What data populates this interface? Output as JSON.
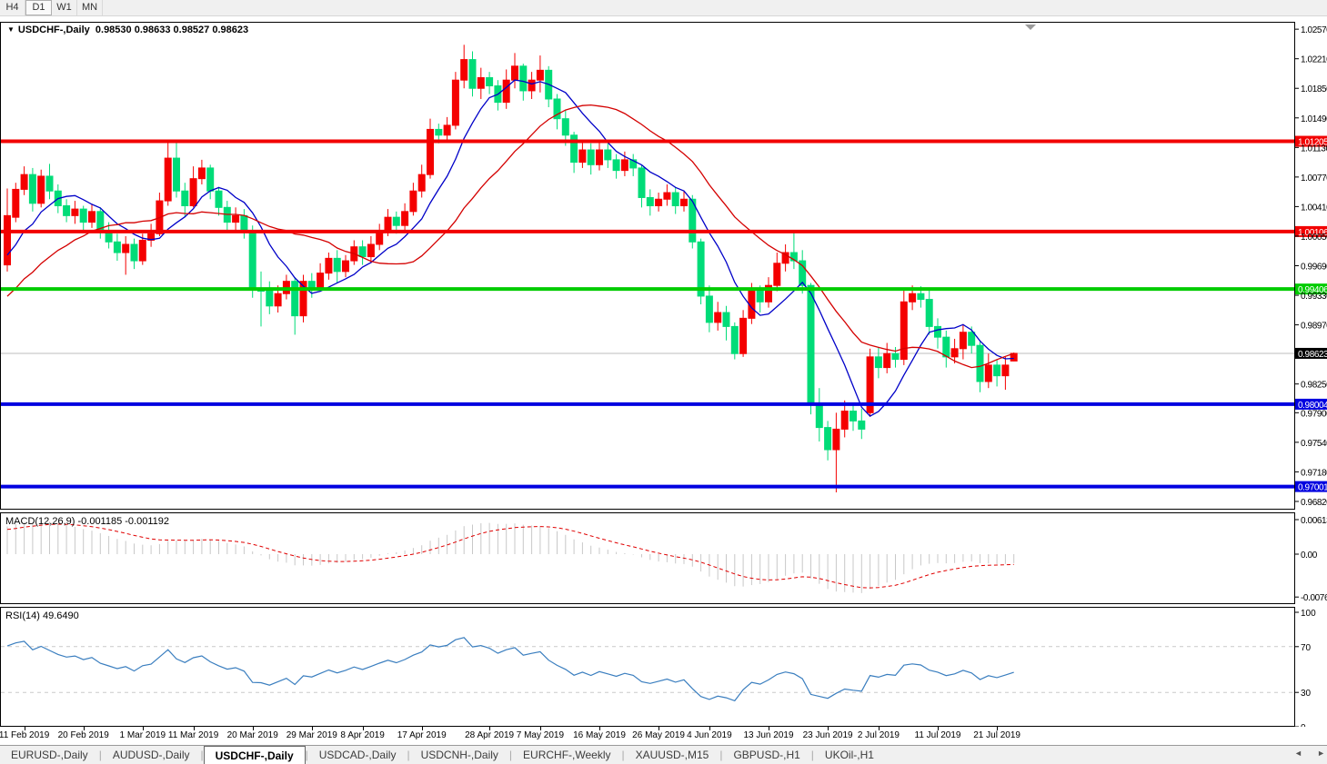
{
  "toolbar": {
    "timeframes": [
      {
        "label": "H4",
        "active": false
      },
      {
        "label": "D1",
        "active": true
      },
      {
        "label": "W1",
        "active": false
      },
      {
        "label": "MN",
        "active": false
      }
    ]
  },
  "chart": {
    "title": "USDCHF-,Daily",
    "ohlc_label": "0.98530 0.98633 0.98527 0.98623",
    "dropdown_icon": "▼"
  },
  "chart_data": {
    "type": "candlestick",
    "symbol": "USDCHF-",
    "timeframe": "Daily",
    "last_bar": {
      "open": 0.9853,
      "high": 0.98633,
      "low": 0.98527,
      "close": 0.98623
    },
    "price_axis": {
      "ticks": [
        "1.02570",
        "1.02210",
        "1.01850",
        "1.01490",
        "1.01130",
        "1.00770",
        "1.00410",
        "1.00050",
        "0.99690",
        "0.99330",
        "0.98970",
        "0.98250",
        "0.97900",
        "0.97540",
        "0.97180",
        "0.96820"
      ],
      "pmax": 1.0266,
      "pmin": 0.9672
    },
    "current_price": {
      "value": 0.98623,
      "label": "0.98623"
    },
    "hlines": [
      {
        "price": 1.01205,
        "label": "1.01205",
        "color": "#f20000"
      },
      {
        "price": 1.00106,
        "label": "1.00106",
        "color": "#f20000"
      },
      {
        "price": 0.99406,
        "label": "0.99406",
        "color": "#00cc00"
      },
      {
        "price": 0.98004,
        "label": "0.98004",
        "color": "#0000e0"
      },
      {
        "price": 0.97001,
        "label": "0.97001",
        "color": "#0000e0"
      }
    ],
    "moving_averages": [
      {
        "name": "fast",
        "period": 8,
        "color": "#0000c8"
      },
      {
        "name": "slow",
        "period": 20,
        "color": "#d40000"
      }
    ],
    "date_axis": [
      {
        "label": "11 Feb 2019",
        "i": 2
      },
      {
        "label": "20 Feb 2019",
        "i": 9
      },
      {
        "label": "1 Mar 2019",
        "i": 16
      },
      {
        "label": "11 Mar 2019",
        "i": 22
      },
      {
        "label": "20 Mar 2019",
        "i": 29
      },
      {
        "label": "29 Mar 2019",
        "i": 36
      },
      {
        "label": "8 Apr 2019",
        "i": 42
      },
      {
        "label": "17 Apr 2019",
        "i": 49
      },
      {
        "label": "28 Apr 2019",
        "i": 57
      },
      {
        "label": "7 May 2019",
        "i": 63
      },
      {
        "label": "16 May 2019",
        "i": 70
      },
      {
        "label": "26 May 2019",
        "i": 77
      },
      {
        "label": "4 Jun 2019",
        "i": 83
      },
      {
        "label": "13 Jun 2019",
        "i": 90
      },
      {
        "label": "23 Jun 2019",
        "i": 97
      },
      {
        "label": "2 Jul 2019",
        "i": 103
      },
      {
        "label": "11 Jul 2019",
        "i": 110
      },
      {
        "label": "21 Jul 2019",
        "i": 117
      }
    ],
    "candles": [
      [
        0.997,
        1.0063,
        0.9962,
        1.003
      ],
      [
        1.0028,
        1.007,
        1.0022,
        1.0062
      ],
      [
        1.0062,
        1.009,
        1.0055,
        1.008
      ],
      [
        1.008,
        1.0088,
        1.0035,
        1.0045
      ],
      [
        1.0045,
        1.0086,
        1.004,
        1.0078
      ],
      [
        1.0078,
        1.0093,
        1.005,
        1.006
      ],
      [
        1.006,
        1.0068,
        1.0033,
        1.0042
      ],
      [
        1.0042,
        1.005,
        1.0022,
        1.003
      ],
      [
        1.003,
        1.0048,
        1.002,
        1.0038
      ],
      [
        1.0038,
        1.0042,
        1.0012,
        1.0022
      ],
      [
        1.0022,
        1.0044,
        1.0015,
        1.0035
      ],
      [
        1.0035,
        1.004,
        1.0002,
        1.001
      ],
      [
        1.001,
        1.0022,
        0.999,
        0.9998
      ],
      [
        0.9998,
        1.0008,
        0.9975,
        0.9985
      ],
      [
        0.9985,
        1.0005,
        0.9958,
        0.9995
      ],
      [
        0.9995,
        1.0002,
        0.9965,
        0.9975
      ],
      [
        0.9975,
        1.0008,
        0.997,
        1.0
      ],
      [
        1.0,
        1.002,
        0.9992,
        1.0008
      ],
      [
        1.0008,
        1.0058,
        1.0005,
        1.0048
      ],
      [
        1.0048,
        1.0122,
        1.0042,
        1.01
      ],
      [
        1.01,
        1.0121,
        1.0052,
        1.006
      ],
      [
        1.006,
        1.007,
        1.0028,
        1.0042
      ],
      [
        1.0042,
        1.009,
        1.004,
        1.0075
      ],
      [
        1.0075,
        1.0098,
        1.0068,
        1.0088
      ],
      [
        1.0088,
        1.0092,
        1.005,
        1.006
      ],
      [
        1.006,
        1.0065,
        1.003,
        1.004
      ],
      [
        1.004,
        1.0048,
        1.001,
        1.0022
      ],
      [
        1.0022,
        1.004,
        1.0012,
        1.003
      ],
      [
        1.003,
        1.0038,
        1.0002,
        1.0012
      ],
      [
        1.0012,
        1.0018,
        0.993,
        0.994
      ],
      [
        0.994,
        0.9962,
        0.9895,
        0.9938
      ],
      [
        0.9938,
        0.995,
        0.991,
        0.992
      ],
      [
        0.992,
        0.9945,
        0.9912,
        0.9935
      ],
      [
        0.9935,
        0.9958,
        0.9928,
        0.995
      ],
      [
        0.995,
        0.9955,
        0.9885,
        0.9908
      ],
      [
        0.9908,
        0.9958,
        0.99,
        0.995
      ],
      [
        0.995,
        0.996,
        0.993,
        0.9942
      ],
      [
        0.9942,
        0.9972,
        0.9938,
        0.996
      ],
      [
        0.996,
        0.9985,
        0.9952,
        0.9978
      ],
      [
        0.9978,
        0.9988,
        0.9948,
        0.9962
      ],
      [
        0.9962,
        0.9982,
        0.9955,
        0.9975
      ],
      [
        0.9975,
        1.0,
        0.997,
        0.9992
      ],
      [
        0.9992,
        1.0,
        0.997,
        0.998
      ],
      [
        0.998,
        1.0005,
        0.9972,
        0.9995
      ],
      [
        0.9995,
        1.002,
        0.9988,
        1.0012
      ],
      [
        1.0012,
        1.0038,
        1.0005,
        1.0028
      ],
      [
        1.0028,
        1.0035,
        1.0008,
        1.0018
      ],
      [
        1.0018,
        1.0045,
        1.0012,
        1.0035
      ],
      [
        1.0035,
        1.007,
        1.003,
        1.006
      ],
      [
        1.006,
        1.0092,
        1.0052,
        1.008
      ],
      [
        1.008,
        1.0148,
        1.0075,
        1.0135
      ],
      [
        1.0135,
        1.0142,
        1.0118,
        1.0128
      ],
      [
        1.0128,
        1.015,
        1.012,
        1.014
      ],
      [
        1.014,
        1.0205,
        1.0135,
        1.0195
      ],
      [
        1.0195,
        1.0238,
        1.0185,
        1.022
      ],
      [
        1.022,
        1.023,
        1.0175,
        1.0185
      ],
      [
        1.0185,
        1.021,
        1.0172,
        1.0198
      ],
      [
        1.0198,
        1.0205,
        1.0178,
        1.0188
      ],
      [
        1.0188,
        1.0195,
        1.0158,
        1.0168
      ],
      [
        1.0168,
        1.0208,
        1.016,
        1.0195
      ],
      [
        1.0195,
        1.0228,
        1.0185,
        1.0212
      ],
      [
        1.0212,
        1.0215,
        1.017,
        1.0182
      ],
      [
        1.0182,
        1.0205,
        1.0172,
        1.0195
      ],
      [
        1.0195,
        1.0225,
        1.018,
        1.0207
      ],
      [
        1.0207,
        1.0212,
        1.0162,
        1.0172
      ],
      [
        1.0172,
        1.0178,
        1.0135,
        1.0148
      ],
      [
        1.0148,
        1.0158,
        1.0115,
        1.0128
      ],
      [
        1.0128,
        1.0132,
        1.0082,
        1.0095
      ],
      [
        1.0095,
        1.0122,
        1.0088,
        1.011
      ],
      [
        1.011,
        1.0118,
        1.008,
        1.0092
      ],
      [
        1.0092,
        1.012,
        1.0085,
        1.011
      ],
      [
        1.011,
        1.0118,
        1.0088,
        1.0098
      ],
      [
        1.0098,
        1.0105,
        1.0075,
        1.0085
      ],
      [
        1.0085,
        1.0108,
        1.0078,
        1.0098
      ],
      [
        1.0098,
        1.0105,
        1.0078,
        1.0088
      ],
      [
        1.0088,
        1.0092,
        1.004,
        1.0052
      ],
      [
        1.0052,
        1.0062,
        1.003,
        1.0042
      ],
      [
        1.0042,
        1.0058,
        1.0035,
        1.005
      ],
      [
        1.005,
        1.0068,
        1.0042,
        1.0058
      ],
      [
        1.0058,
        1.0065,
        1.0032,
        1.0042
      ],
      [
        1.0042,
        1.006,
        1.0035,
        1.005
      ],
      [
        1.005,
        1.0055,
        0.999,
        0.9998
      ],
      [
        0.9998,
        1.0002,
        0.9922,
        0.9932
      ],
      [
        0.9932,
        0.9945,
        0.9888,
        0.99
      ],
      [
        0.99,
        0.9925,
        0.989,
        0.9912
      ],
      [
        0.9912,
        0.992,
        0.9878,
        0.9895
      ],
      [
        0.9895,
        0.99,
        0.9855,
        0.9862
      ],
      [
        0.9862,
        0.9915,
        0.9858,
        0.9905
      ],
      [
        0.9905,
        0.9948,
        0.9898,
        0.9938
      ],
      [
        0.9938,
        0.9945,
        0.9912,
        0.9925
      ],
      [
        0.9925,
        0.9955,
        0.9918,
        0.9945
      ],
      [
        0.9945,
        0.9985,
        0.9938,
        0.9972
      ],
      [
        0.9972,
        0.9995,
        0.9962,
        0.9985
      ],
      [
        0.9985,
        1.0012,
        0.9965,
        0.9975
      ],
      [
        0.9975,
        0.9988,
        0.9935,
        0.9945
      ],
      [
        0.9945,
        0.9948,
        0.9788,
        0.98
      ],
      [
        0.98,
        0.982,
        0.9755,
        0.9772
      ],
      [
        0.9772,
        0.978,
        0.9732,
        0.9745
      ],
      [
        0.9745,
        0.979,
        0.9693,
        0.977
      ],
      [
        0.977,
        0.9805,
        0.976,
        0.9792
      ],
      [
        0.9792,
        0.98,
        0.9768,
        0.978
      ],
      [
        0.978,
        0.9795,
        0.9758,
        0.977
      ],
      [
        0.979,
        0.9868,
        0.9785,
        0.9858
      ],
      [
        0.9858,
        0.987,
        0.9832,
        0.9845
      ],
      [
        0.9845,
        0.9875,
        0.9838,
        0.9862
      ],
      [
        0.9862,
        0.987,
        0.9845,
        0.9855
      ],
      [
        0.9855,
        0.994,
        0.9848,
        0.9925
      ],
      [
        0.9925,
        0.9945,
        0.9915,
        0.9935
      ],
      [
        0.9935,
        0.9944,
        0.9918,
        0.9928
      ],
      [
        0.9928,
        0.9942,
        0.9885,
        0.9895
      ],
      [
        0.9895,
        0.9905,
        0.9868,
        0.9882
      ],
      [
        0.9882,
        0.989,
        0.9845,
        0.9858
      ],
      [
        0.9858,
        0.988,
        0.985,
        0.9868
      ],
      [
        0.9868,
        0.9898,
        0.9855,
        0.9888
      ],
      [
        0.9888,
        0.9895,
        0.9862,
        0.9872
      ],
      [
        0.9872,
        0.9878,
        0.9815,
        0.9828
      ],
      [
        0.9828,
        0.9862,
        0.982,
        0.9848
      ],
      [
        0.9848,
        0.9855,
        0.9822,
        0.9835
      ],
      [
        0.9835,
        0.9858,
        0.9818,
        0.9848
      ],
      [
        0.9853,
        0.98633,
        0.98527,
        0.98623
      ]
    ],
    "indicators": {
      "macd": {
        "name_label": "MACD(12,26,9)",
        "values_label": "-0.001185 -0.001192",
        "params": [
          12,
          26,
          9
        ],
        "axis_ticks": [
          {
            "v": 0.00613,
            "label": "0.00613"
          },
          {
            "v": 0.0,
            "label": "0.00"
          },
          {
            "v": -0.00761,
            "label": "-0.00761"
          }
        ],
        "vmax": 0.00742,
        "vmin": -0.00887
      },
      "rsi": {
        "name_label": "RSI(14)",
        "value_label": "49.6490",
        "period": 14,
        "axis_ticks": [
          {
            "v": 100,
            "label": "100"
          },
          {
            "v": 70,
            "label": "70"
          },
          {
            "v": 30,
            "label": "30"
          },
          {
            "v": 0,
            "label": "0"
          }
        ],
        "levels": [
          70,
          30
        ]
      }
    },
    "colors": {
      "up_candle": "#f40000",
      "down_candle": "#00dc78",
      "macd_histogram": "#c8c8c8",
      "macd_signal": "#e00000",
      "rsi_line": "#3a7ebf",
      "current_price_line": "#bdbdbd",
      "last_badge_bg": "#000000"
    }
  },
  "tabs": {
    "items": [
      {
        "label": "EURUSD-,Daily",
        "active": false
      },
      {
        "label": "AUDUSD-,Daily",
        "active": false
      },
      {
        "label": "USDCHF-,Daily",
        "active": true
      },
      {
        "label": "USDCAD-,Daily",
        "active": false
      },
      {
        "label": "USDCNH-,Daily",
        "active": false
      },
      {
        "label": "EURCHF-,Weekly",
        "active": false
      },
      {
        "label": "XAUUSD-,M15",
        "active": false
      },
      {
        "label": "GBPUSD-,H1",
        "active": false
      },
      {
        "label": "UKOil-,H1",
        "active": false
      }
    ],
    "scroll_left": "◄",
    "scroll_right": "►"
  }
}
